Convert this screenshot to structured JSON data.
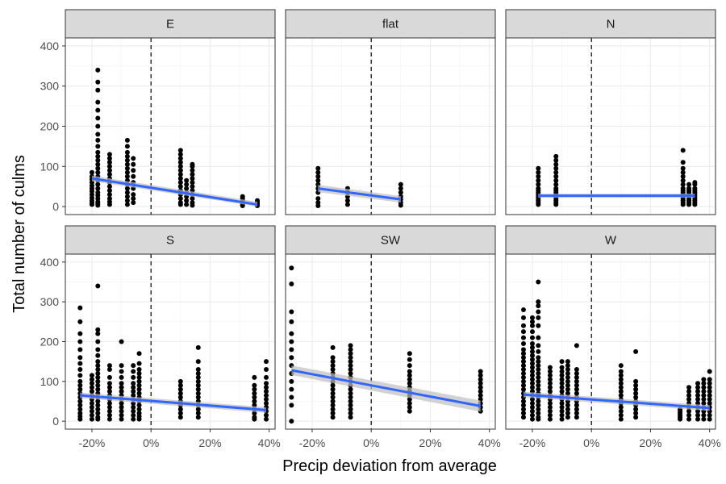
{
  "chart_data": {
    "type": "scatter",
    "xlabel": "Precip deviation from average",
    "ylabel": "Total number of culms",
    "xlim": [
      -0.29,
      0.42
    ],
    "ylim": [
      -20,
      420
    ],
    "x_ticks": [
      -0.2,
      0.0,
      0.2,
      0.4
    ],
    "x_tick_labels": [
      "-20%",
      "0%",
      "20%",
      "40%"
    ],
    "y_ticks": [
      0,
      100,
      200,
      300,
      400
    ],
    "y_tick_labels": [
      "0",
      "100",
      "200",
      "300",
      "400"
    ],
    "reference_line_x": 0.0,
    "grid": true,
    "colors": {
      "points": "#000000",
      "fit_line": "#3366FF",
      "ribbon": "#bfbfbf",
      "strip": "#d9d9d9"
    },
    "panels": [
      {
        "label": "E",
        "points": [
          {
            "x": -0.2,
            "y": [
              5,
              10,
              15,
              22,
              30,
              38,
              45,
              52,
              60,
              68,
              75,
              85
            ]
          },
          {
            "x": -0.18,
            "y": [
              3,
              8,
              12,
              20,
              28,
              35,
              45,
              55,
              65,
              75,
              85,
              95,
              105,
              115,
              125,
              135,
              150,
              165,
              180,
              200,
              220,
              240,
              260,
              290,
              310,
              340
            ]
          },
          {
            "x": -0.14,
            "y": [
              5,
              12,
              20,
              30,
              40,
              50,
              60,
              70,
              80,
              90,
              100,
              110,
              120,
              130
            ]
          },
          {
            "x": -0.08,
            "y": [
              5,
              15,
              25,
              35,
              45,
              55,
              65,
              75,
              85,
              95,
              105,
              115,
              125,
              135,
              150,
              165
            ]
          },
          {
            "x": -0.06,
            "y": [
              10,
              20,
              30,
              45,
              60,
              75,
              90,
              105,
              120
            ]
          },
          {
            "x": 0.1,
            "y": [
              5,
              10,
              20,
              30,
              40,
              50,
              60,
              70,
              80,
              90,
              100,
              110,
              120,
              130,
              140
            ]
          },
          {
            "x": 0.12,
            "y": [
              5,
              15,
              25,
              35,
              45,
              55,
              65
            ]
          },
          {
            "x": 0.14,
            "y": [
              3,
              10,
              20,
              30,
              40,
              50,
              60,
              70,
              80,
              90,
              100,
              105
            ]
          },
          {
            "x": 0.31,
            "y": [
              2,
              5,
              8,
              12,
              15,
              20,
              25
            ]
          },
          {
            "x": 0.36,
            "y": [
              2,
              5,
              8,
              12,
              15
            ]
          }
        ],
        "fit": {
          "x": [
            -0.2,
            0.36
          ],
          "y": [
            70,
            5
          ]
        },
        "ribbon": {
          "upper": [
            77,
            12
          ],
          "lower": [
            63,
            0
          ]
        }
      },
      {
        "label": "flat",
        "points": [
          {
            "x": -0.18,
            "y": [
              2,
              10,
              20,
              35,
              45,
              55,
              65,
              75,
              85,
              95
            ]
          },
          {
            "x": -0.08,
            "y": [
              5,
              15,
              25,
              35,
              45
            ]
          },
          {
            "x": 0.1,
            "y": [
              3,
              10,
              18,
              25,
              35,
              45,
              55
            ]
          }
        ],
        "fit": {
          "x": [
            -0.18,
            0.1
          ],
          "y": [
            45,
            18
          ]
        },
        "ribbon": {
          "upper": [
            54,
            26
          ],
          "lower": [
            36,
            10
          ]
        }
      },
      {
        "label": "N",
        "points": [
          {
            "x": -0.18,
            "y": [
              5,
              10,
              15,
              20,
              25,
              30,
              35,
              40,
              45,
              55,
              65,
              75,
              85,
              95
            ]
          },
          {
            "x": -0.12,
            "y": [
              5,
              10,
              15,
              20,
              25,
              30,
              35,
              40,
              45,
              55,
              65,
              75,
              85,
              95,
              105,
              115,
              125
            ]
          },
          {
            "x": 0.31,
            "y": [
              5,
              10,
              15,
              20,
              25,
              30,
              35,
              40,
              45,
              55,
              65,
              75,
              85,
              95,
              110,
              140
            ]
          },
          {
            "x": 0.33,
            "y": [
              5,
              10,
              15,
              20,
              25,
              30,
              35,
              40,
              45,
              55
            ]
          },
          {
            "x": 0.35,
            "y": [
              5,
              10,
              15,
              20,
              25,
              30,
              35,
              40,
              45,
              55,
              60
            ]
          }
        ],
        "fit": {
          "x": [
            -0.18,
            0.35
          ],
          "y": [
            27,
            27
          ]
        },
        "ribbon": {
          "upper": [
            32,
            32
          ],
          "lower": [
            22,
            22
          ]
        }
      },
      {
        "label": "S",
        "points": [
          {
            "x": -0.24,
            "y": [
              5,
              12,
              20,
              30,
              40,
              50,
              60,
              70,
              80,
              90,
              100,
              115,
              130,
              145,
              160,
              180,
              200,
              220,
              250,
              285
            ]
          },
          {
            "x": -0.2,
            "y": [
              5,
              15,
              25,
              35,
              45,
              55,
              65,
              75,
              85,
              95,
              105,
              115
            ]
          },
          {
            "x": -0.18,
            "y": [
              5,
              10,
              20,
              30,
              40,
              50,
              60,
              70,
              80,
              90,
              100,
              110,
              120,
              130,
              140,
              150,
              165,
              180,
              200,
              220,
              230,
              340
            ]
          },
          {
            "x": -0.14,
            "y": [
              5,
              15,
              25,
              35,
              45,
              55,
              65,
              75,
              85,
              95,
              110,
              130,
              140
            ]
          },
          {
            "x": -0.1,
            "y": [
              5,
              15,
              25,
              35,
              45,
              55,
              65,
              75,
              85,
              95,
              110,
              125,
              140,
              200
            ]
          },
          {
            "x": -0.06,
            "y": [
              5,
              15,
              25,
              35,
              45,
              55,
              65,
              75,
              85,
              95,
              110,
              125,
              140
            ]
          },
          {
            "x": -0.04,
            "y": [
              5,
              12,
              20,
              30,
              40,
              50,
              60,
              70,
              80,
              90,
              100,
              110,
              120,
              130,
              145,
              170
            ]
          },
          {
            "x": 0.1,
            "y": [
              10,
              20,
              30,
              40,
              50,
              60,
              70,
              80,
              90,
              100
            ]
          },
          {
            "x": 0.16,
            "y": [
              10,
              20,
              30,
              40,
              50,
              60,
              70,
              80,
              90,
              100,
              110,
              120,
              130,
              150,
              185
            ]
          },
          {
            "x": 0.35,
            "y": [
              5,
              10,
              20,
              30,
              40,
              50,
              60,
              70,
              80,
              90,
              110
            ]
          },
          {
            "x": 0.39,
            "y": [
              5,
              15,
              25,
              35,
              45,
              55,
              65,
              75,
              85,
              95,
              110,
              130,
              150
            ]
          }
        ],
        "fit": {
          "x": [
            -0.24,
            0.39
          ],
          "y": [
            65,
            28
          ]
        },
        "ribbon": {
          "upper": [
            72,
            35
          ],
          "lower": [
            58,
            21
          ]
        }
      },
      {
        "label": "SW",
        "points": [
          {
            "x": -0.27,
            "y": [
              0,
              40,
              60,
              80,
              100,
              120,
              140,
              160,
              180,
              200,
              220,
              250,
              275,
              345,
              385
            ]
          },
          {
            "x": -0.13,
            "y": [
              10,
              20,
              30,
              40,
              50,
              60,
              70,
              80,
              90,
              100,
              110,
              120,
              130,
              140,
              150,
              160,
              185
            ]
          },
          {
            "x": -0.07,
            "y": [
              10,
              20,
              30,
              40,
              50,
              60,
              70,
              80,
              90,
              100,
              110,
              120,
              130,
              140,
              150,
              160,
              170,
              180,
              190
            ]
          },
          {
            "x": 0.13,
            "y": [
              25,
              35,
              45,
              55,
              65,
              75,
              85,
              95,
              105,
              115,
              125,
              140,
              155,
              170
            ]
          },
          {
            "x": 0.37,
            "y": [
              25,
              35,
              45,
              55,
              65,
              75,
              85,
              95,
              105,
              115,
              125
            ]
          }
        ],
        "fit": {
          "x": [
            -0.27,
            0.37
          ],
          "y": [
            128,
            38
          ]
        },
        "ribbon": {
          "upper": [
            140,
            52
          ],
          "lower": [
            116,
            24
          ]
        }
      },
      {
        "label": "W",
        "points": [
          {
            "x": -0.23,
            "y": [
              10,
              20,
              30,
              40,
              50,
              60,
              70,
              80,
              90,
              100,
              110,
              120,
              130,
              140,
              150,
              160,
              170,
              180,
              195,
              210,
              225,
              240,
              260,
              280
            ]
          },
          {
            "x": -0.2,
            "y": [
              5,
              15,
              25,
              35,
              45,
              55,
              65,
              75,
              85,
              95,
              105,
              115,
              125,
              135,
              145,
              155,
              165,
              175,
              185,
              195,
              210,
              225,
              240,
              250,
              260
            ]
          },
          {
            "x": -0.18,
            "y": [
              5,
              10,
              20,
              30,
              40,
              50,
              60,
              70,
              80,
              90,
              100,
              110,
              120,
              130,
              140,
              150,
              160,
              175,
              190,
              210,
              240,
              260,
              275,
              290,
              300,
              350
            ]
          },
          {
            "x": -0.14,
            "y": [
              5,
              15,
              25,
              35,
              45,
              55,
              65,
              75,
              85,
              95,
              105,
              115,
              125,
              135
            ]
          },
          {
            "x": -0.1,
            "y": [
              5,
              15,
              25,
              35,
              45,
              55,
              65,
              75,
              85,
              95,
              105,
              115,
              125,
              135,
              150
            ]
          },
          {
            "x": -0.08,
            "y": [
              10,
              20,
              30,
              40,
              50,
              60,
              70,
              80,
              90,
              100,
              110,
              120,
              130,
              140,
              150
            ]
          },
          {
            "x": -0.05,
            "y": [
              10,
              20,
              30,
              40,
              50,
              60,
              70,
              80,
              90,
              100,
              110,
              120,
              130,
              190
            ]
          },
          {
            "x": 0.1,
            "y": [
              5,
              15,
              25,
              35,
              45,
              55,
              65,
              75,
              85,
              95,
              105,
              115,
              125,
              140
            ]
          },
          {
            "x": 0.15,
            "y": [
              10,
              20,
              30,
              40,
              50,
              60,
              70,
              80,
              90,
              100,
              175
            ]
          },
          {
            "x": 0.3,
            "y": [
              5,
              10,
              15,
              20,
              25,
              30
            ]
          },
          {
            "x": 0.33,
            "y": [
              5,
              15,
              25,
              35,
              45,
              55,
              65,
              75,
              85
            ]
          },
          {
            "x": 0.36,
            "y": [
              5,
              15,
              25,
              35,
              45,
              55,
              65,
              75,
              85,
              95
            ]
          },
          {
            "x": 0.38,
            "y": [
              5,
              15,
              25,
              35,
              45,
              55,
              65,
              75,
              85,
              95,
              105
            ]
          },
          {
            "x": 0.4,
            "y": [
              5,
              15,
              25,
              35,
              45,
              55,
              65,
              75,
              85,
              95,
              105,
              125
            ]
          }
        ],
        "fit": {
          "x": [
            -0.23,
            0.4
          ],
          "y": [
            67,
            33
          ]
        },
        "ribbon": {
          "upper": [
            74,
            40
          ],
          "lower": [
            60,
            26
          ]
        }
      }
    ]
  }
}
